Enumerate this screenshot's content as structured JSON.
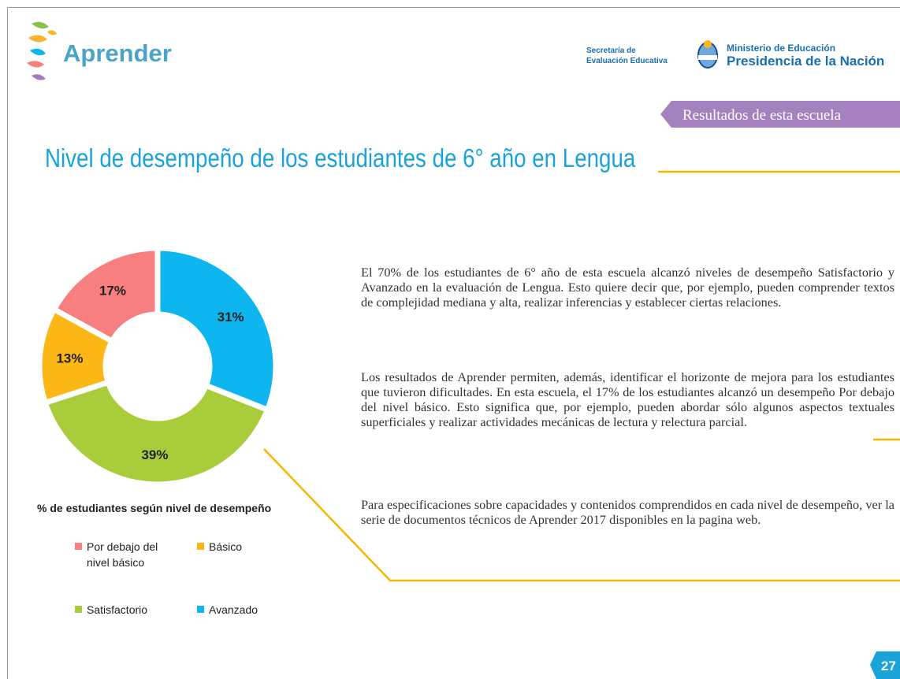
{
  "header": {
    "logo": "Aprender",
    "secretaria": [
      "Secretaría de",
      "Evaluación Educativa"
    ],
    "ministerio": [
      "Ministerio de Educación",
      "Presidencia de la Nación"
    ]
  },
  "tag": "Resultados de esta escuela",
  "title": "Nivel de desempeño de los estudiantes de 6° año en Lengua",
  "chart_data": {
    "type": "pie",
    "title": "% de estudiantes según nivel de desempeño",
    "categories": [
      "Por debajo del nivel básico",
      "Básico",
      "Satisfactorio",
      "Avanzado"
    ],
    "values": [
      17,
      13,
      39,
      31
    ],
    "value_labels": [
      "17%",
      "13%",
      "39%",
      "31%"
    ],
    "colors": [
      "#f77f80",
      "#fbb715",
      "#a9cc3b",
      "#0db6ee"
    ]
  },
  "paragraphs": [
    "El 70% de los estudiantes de 6° año de esta escuela alcanzó niveles de desempeño Satisfactorio y Avanzado en la evaluación de Lengua. Esto quiere decir que, por ejemplo, pueden comprender textos de complejidad mediana y alta, realizar inferencias y establecer ciertas relaciones.",
    "Los resultados de Aprender permiten, además, identificar el horizonte de mejora para los estudiantes que tuvieron dificultades. En esta escuela, el 17% de los estudiantes alcanzó un desempeño Por debajo del nivel básico. Esto significa que, por ejemplo, pueden abordar sólo algunos aspectos textuales superficiales y realizar actividades mecánicas de lectura y relectura parcial.",
    "Para especificaciones sobre capacidades y contenidos comprendidos en cada nivel de desempeño, ver la serie de documentos técnicos de Aprender 2017 disponibles en la pagina web."
  ],
  "page_number": "27"
}
